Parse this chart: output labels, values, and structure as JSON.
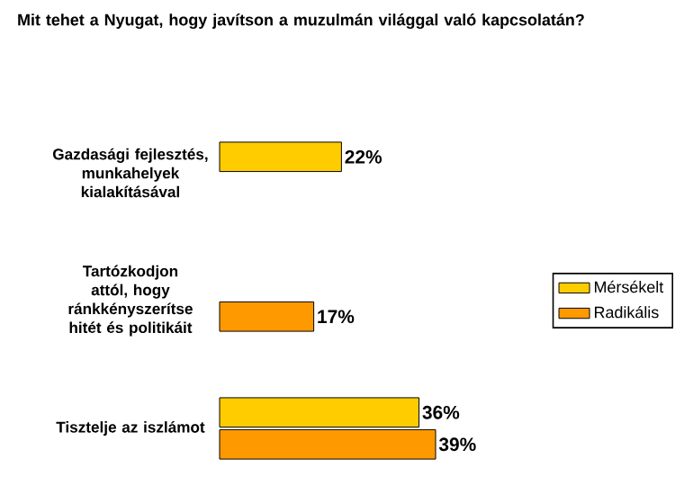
{
  "chart_data": {
    "type": "bar",
    "orientation": "horizontal",
    "title": "Mit tehet a Nyugat, hogy javítson a muzulmán világgal való kapcsolatán?",
    "categories": [
      "Gazdasági fejlesztés, munkahelyek kialakításával",
      "Tartózkodjon attól, hogy ránkkényszerítse hitét és politikáit",
      "Tisztelje az iszlámot"
    ],
    "series": [
      {
        "name": "Mérsékelt",
        "color": "#ffcc00",
        "values": [
          22,
          null,
          36
        ],
        "value_labels": [
          "22%",
          null,
          "36%"
        ]
      },
      {
        "name": "Radikális",
        "color": "#ff9900",
        "values": [
          null,
          17,
          39
        ],
        "value_labels": [
          null,
          "17%",
          "39%"
        ]
      }
    ],
    "legend": "right"
  }
}
